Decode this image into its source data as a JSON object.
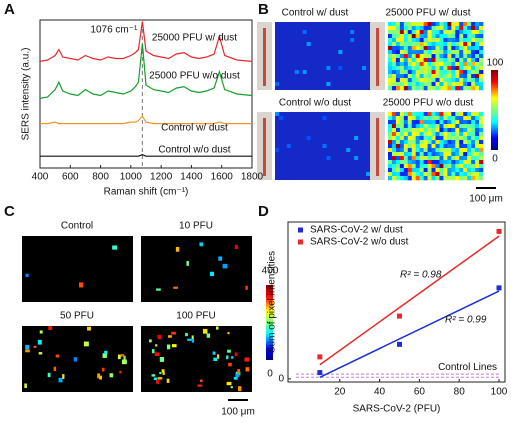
{
  "panels": {
    "a": "A",
    "b": "B",
    "c": "C",
    "d": "D"
  },
  "chart_data": [
    {
      "type": "line",
      "title": "",
      "ylabel": "SERS intensity (a.u.)",
      "xlabel": "Raman shift (cm⁻¹)",
      "xlim": [
        400,
        1800
      ],
      "xticks": [
        400,
        600,
        800,
        1000,
        1200,
        1400,
        1600,
        1800
      ],
      "ylim": [
        0,
        100
      ],
      "annotation": {
        "text": "1076 cm⁻¹",
        "x": 1076
      },
      "x": [
        400,
        450,
        500,
        525,
        550,
        600,
        650,
        700,
        750,
        800,
        850,
        900,
        950,
        1000,
        1030,
        1050,
        1076,
        1100,
        1150,
        1200,
        1250,
        1300,
        1350,
        1400,
        1450,
        1500,
        1550,
        1585,
        1620,
        1700,
        1800
      ],
      "series": [
        {
          "name": "25000 PFU w/ dust",
          "color": "#e8282b",
          "values": [
            72,
            73,
            76,
            80,
            75,
            74,
            73,
            76,
            74,
            73,
            75,
            74,
            74,
            76,
            78,
            80,
            99,
            79,
            76,
            75,
            74,
            77,
            78,
            75,
            74,
            75,
            77,
            89,
            76,
            73,
            72
          ]
        },
        {
          "name": "25000 PFU w/o dust",
          "color": "#16a02a",
          "values": [
            47,
            48,
            53,
            58,
            52,
            50,
            49,
            53,
            50,
            49,
            52,
            51,
            50,
            52,
            55,
            58,
            84,
            56,
            53,
            52,
            51,
            54,
            55,
            52,
            51,
            52,
            54,
            65,
            53,
            50,
            49
          ]
        },
        {
          "name": "Control w/ dust",
          "color": "#f0952a",
          "values": [
            30,
            30,
            31,
            30,
            30,
            30,
            30,
            30,
            30,
            30,
            30,
            30,
            30,
            31,
            31,
            32,
            35,
            31,
            30,
            30,
            30,
            30,
            30,
            30,
            30,
            30,
            30,
            31,
            30,
            30,
            30
          ]
        },
        {
          "name": "Control w/o dust",
          "color": "#111111",
          "values": [
            8,
            8,
            8,
            8,
            8,
            8,
            8,
            8,
            8,
            8,
            8,
            8,
            8,
            8,
            8,
            8,
            9,
            8,
            8,
            8,
            8,
            8,
            8,
            8,
            8,
            8,
            8,
            8,
            8,
            8,
            8
          ]
        }
      ]
    },
    {
      "type": "scatter",
      "xlabel": "SARS-CoV-2 (PFU)",
      "ylabel": "Sum of pixel intensities",
      "xlim": [
        -6,
        103
      ],
      "xticks": [
        20,
        40,
        60,
        80,
        100
      ],
      "ylim": [
        -2,
        100
      ],
      "yticks": [
        0
      ],
      "legend": "upper left",
      "series": [
        {
          "name": "SARS-CoV-2 w/ dust",
          "color": "#1d2fd0",
          "x": [
            10,
            50,
            100
          ],
          "values": [
            4,
            22,
            58
          ]
        },
        {
          "name": "SARS-CoV-2 w/o dust",
          "color": "#e8282b",
          "x": [
            10,
            50,
            100
          ],
          "values": [
            14,
            40,
            94
          ]
        }
      ],
      "fits": [
        {
          "color": "#1d2fd0",
          "x": [
            10,
            100
          ],
          "values": [
            1,
            56
          ],
          "label": "R² = 0.99"
        },
        {
          "color": "#e8282b",
          "x": [
            10,
            100
          ],
          "values": [
            9,
            91
          ],
          "label": "R² = 0.98"
        }
      ],
      "control_lines": {
        "label": "Control Lines",
        "color": "#c07be0",
        "values": [
          3,
          1
        ]
      }
    }
  ],
  "heatmaps_b": {
    "labels": [
      "Control w/ dust",
      "25000 PFU w/ dust",
      "Control w/o dust",
      "25000 PFU w/o dust"
    ],
    "colorbar": [
      "100",
      "0"
    ],
    "scalebar": "100 μm"
  },
  "heatmaps_c": {
    "labels": [
      "Control",
      "10 PFU",
      "50 PFU",
      "100 PFU"
    ],
    "colorbar": [
      "400",
      "0"
    ],
    "scalebar": "100 μm"
  }
}
